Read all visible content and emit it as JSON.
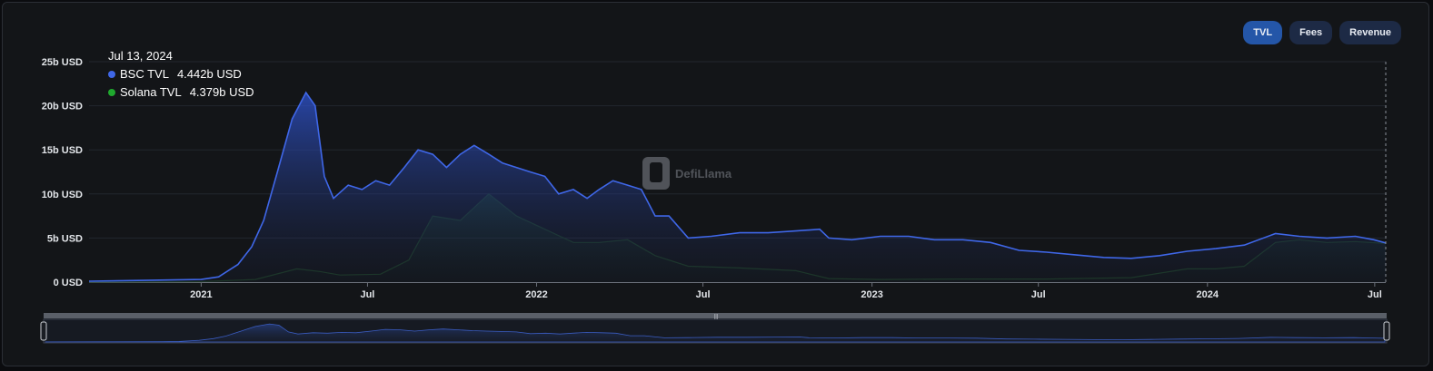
{
  "buttons": [
    {
      "label": "TVL",
      "active": true
    },
    {
      "label": "Fees",
      "active": false
    },
    {
      "label": "Revenue",
      "active": false
    }
  ],
  "tooltip": {
    "date": "Jul 13, 2024",
    "entries": [
      {
        "name": "BSC TVL",
        "value": "4.442b USD",
        "color": "#3f67e8"
      },
      {
        "name": "Solana TVL",
        "value": "4.379b USD",
        "color": "#1fa82e"
      }
    ]
  },
  "watermark": "DefiLlama",
  "chart_data": {
    "type": "area",
    "ylim": [
      0,
      25
    ],
    "y_ticks": [
      "0 USD",
      "5b USD",
      "10b USD",
      "15b USD",
      "20b USD",
      "25b USD"
    ],
    "x_ticks": [
      "2021",
      "Jul",
      "2022",
      "Jul",
      "2023",
      "Jul",
      "2024",
      "Jul"
    ],
    "xlim": [
      "2020-09-01",
      "2024-07-13"
    ],
    "grid": true,
    "series": [
      {
        "name": "BSC TVL",
        "color": "#3f67e8",
        "points": [
          [
            "2020-09-01",
            0.1
          ],
          [
            "2020-11-01",
            0.2
          ],
          [
            "2021-01-01",
            0.3
          ],
          [
            "2021-01-20",
            0.6
          ],
          [
            "2021-02-10",
            2.0
          ],
          [
            "2021-02-25",
            4.0
          ],
          [
            "2021-03-10",
            7.0
          ],
          [
            "2021-03-25",
            12.5
          ],
          [
            "2021-04-10",
            18.5
          ],
          [
            "2021-04-25",
            21.5
          ],
          [
            "2021-05-05",
            20.0
          ],
          [
            "2021-05-15",
            12.0
          ],
          [
            "2021-05-25",
            9.5
          ],
          [
            "2021-06-10",
            11.0
          ],
          [
            "2021-06-25",
            10.5
          ],
          [
            "2021-07-10",
            11.5
          ],
          [
            "2021-07-25",
            11.0
          ],
          [
            "2021-08-10",
            13.0
          ],
          [
            "2021-08-25",
            15.0
          ],
          [
            "2021-09-10",
            14.5
          ],
          [
            "2021-09-25",
            13.0
          ],
          [
            "2021-10-10",
            14.5
          ],
          [
            "2021-10-25",
            15.5
          ],
          [
            "2021-11-10",
            14.5
          ],
          [
            "2021-11-25",
            13.5
          ],
          [
            "2021-12-10",
            13.0
          ],
          [
            "2021-12-25",
            12.5
          ],
          [
            "2022-01-10",
            12.0
          ],
          [
            "2022-01-25",
            10.0
          ],
          [
            "2022-02-10",
            10.5
          ],
          [
            "2022-02-25",
            9.5
          ],
          [
            "2022-03-10",
            10.5
          ],
          [
            "2022-03-25",
            11.5
          ],
          [
            "2022-04-10",
            11.0
          ],
          [
            "2022-04-25",
            10.5
          ],
          [
            "2022-05-10",
            7.5
          ],
          [
            "2022-05-25",
            7.5
          ],
          [
            "2022-06-15",
            5.0
          ],
          [
            "2022-07-10",
            5.2
          ],
          [
            "2022-08-10",
            5.6
          ],
          [
            "2022-09-10",
            5.6
          ],
          [
            "2022-10-10",
            5.8
          ],
          [
            "2022-11-05",
            6.0
          ],
          [
            "2022-11-15",
            5.0
          ],
          [
            "2022-12-10",
            4.8
          ],
          [
            "2023-01-10",
            5.2
          ],
          [
            "2023-02-10",
            5.2
          ],
          [
            "2023-03-10",
            4.8
          ],
          [
            "2023-04-10",
            4.8
          ],
          [
            "2023-05-10",
            4.5
          ],
          [
            "2023-06-10",
            3.6
          ],
          [
            "2023-07-10",
            3.4
          ],
          [
            "2023-08-10",
            3.1
          ],
          [
            "2023-09-10",
            2.8
          ],
          [
            "2023-10-10",
            2.7
          ],
          [
            "2023-11-10",
            3.0
          ],
          [
            "2023-12-10",
            3.5
          ],
          [
            "2024-01-10",
            3.8
          ],
          [
            "2024-02-10",
            4.2
          ],
          [
            "2024-03-15",
            5.5
          ],
          [
            "2024-04-10",
            5.2
          ],
          [
            "2024-05-10",
            5.0
          ],
          [
            "2024-06-10",
            5.2
          ],
          [
            "2024-06-30",
            4.8
          ],
          [
            "2024-07-13",
            4.442
          ]
        ]
      },
      {
        "name": "Solana TVL",
        "color": "#1fa82e",
        "points": [
          [
            "2020-09-01",
            0.0
          ],
          [
            "2021-01-01",
            0.05
          ],
          [
            "2021-03-01",
            0.3
          ],
          [
            "2021-04-15",
            1.5
          ],
          [
            "2021-05-10",
            1.2
          ],
          [
            "2021-06-01",
            0.8
          ],
          [
            "2021-07-15",
            0.9
          ],
          [
            "2021-08-15",
            2.5
          ],
          [
            "2021-09-10",
            7.5
          ],
          [
            "2021-10-10",
            7.0
          ],
          [
            "2021-11-10",
            10.0
          ],
          [
            "2021-12-10",
            7.5
          ],
          [
            "2022-01-10",
            6.0
          ],
          [
            "2022-02-10",
            4.5
          ],
          [
            "2022-03-10",
            4.5
          ],
          [
            "2022-04-10",
            4.8
          ],
          [
            "2022-05-10",
            3.0
          ],
          [
            "2022-06-15",
            1.8
          ],
          [
            "2022-08-10",
            1.6
          ],
          [
            "2022-10-10",
            1.3
          ],
          [
            "2022-11-15",
            0.4
          ],
          [
            "2023-01-10",
            0.3
          ],
          [
            "2023-04-10",
            0.35
          ],
          [
            "2023-07-10",
            0.35
          ],
          [
            "2023-10-10",
            0.5
          ],
          [
            "2023-12-10",
            1.5
          ],
          [
            "2024-01-10",
            1.5
          ],
          [
            "2024-02-10",
            1.8
          ],
          [
            "2024-03-15",
            4.5
          ],
          [
            "2024-04-10",
            4.8
          ],
          [
            "2024-05-10",
            4.5
          ],
          [
            "2024-06-10",
            4.6
          ],
          [
            "2024-07-13",
            4.379
          ]
        ]
      }
    ]
  }
}
